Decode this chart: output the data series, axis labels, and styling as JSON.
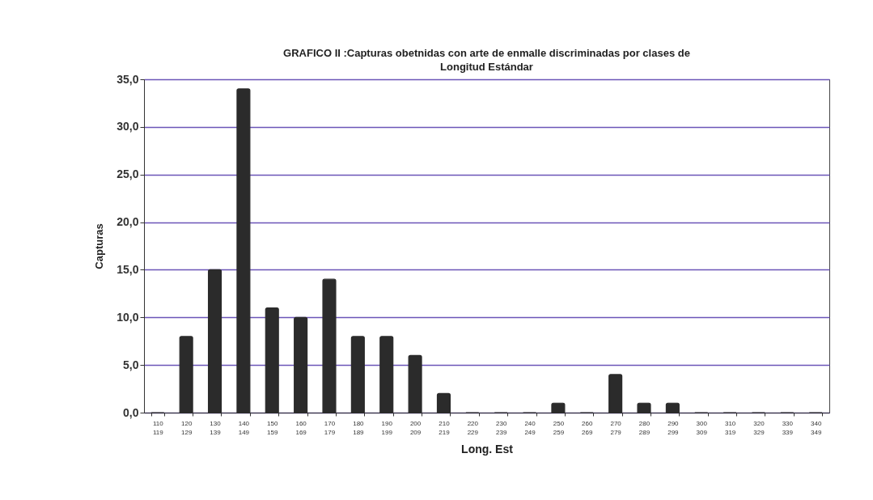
{
  "chart_data": {
    "type": "bar",
    "title": "GRAFICO II :Capturas obetnidas con arte de enmalle discriminadas por clases de Longitud Estándar",
    "xlabel": "Long. Est",
    "ylabel": "Capturas",
    "categories": [
      "110\n119",
      "120\n129",
      "130\n139",
      "140\n149",
      "150\n159",
      "160\n169",
      "170\n179",
      "180\n189",
      "190\n199",
      "200\n209",
      "210\n219",
      "220\n229",
      "230\n239",
      "240\n249",
      "250\n259",
      "260\n269",
      "270\n279",
      "280\n289",
      "290\n299",
      "300\n309",
      "310\n319",
      "320\n329",
      "330\n339",
      "340\n349"
    ],
    "values": [
      0,
      8,
      15,
      34,
      11,
      10,
      14,
      8,
      8,
      6,
      2,
      0,
      0,
      0,
      1,
      0,
      4,
      1,
      1,
      0,
      0,
      0,
      0,
      0
    ],
    "color": "#2b2b2b",
    "ylim": [
      0,
      35
    ],
    "yticks": [
      {
        "value": 0,
        "label": "0,0"
      },
      {
        "value": 5,
        "label": "5,0"
      },
      {
        "value": 10,
        "label": "10,0"
      },
      {
        "value": 15,
        "label": "15,0"
      },
      {
        "value": 20,
        "label": "20,0"
      },
      {
        "value": 25,
        "label": "25,0"
      },
      {
        "value": 30,
        "label": "30,0"
      },
      {
        "value": 35,
        "label": "35,0"
      }
    ],
    "grid": "y"
  }
}
